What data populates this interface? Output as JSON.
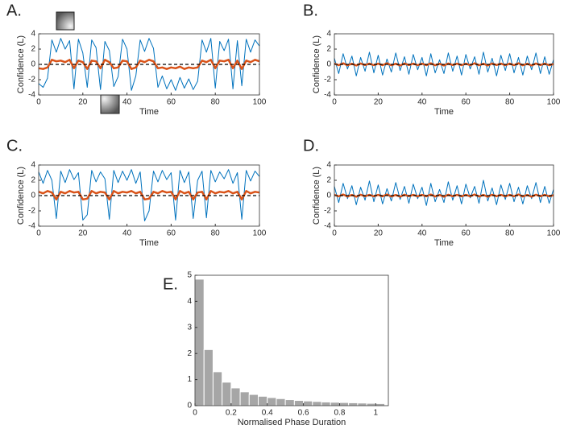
{
  "chart_data": [
    {
      "type": "line",
      "label": "A.",
      "xlabel": "Time",
      "ylabel": "Confidence (L)",
      "xlim": [
        0,
        100
      ],
      "ylim": [
        -4,
        4
      ],
      "xticks": [
        0,
        20,
        40,
        60,
        80,
        100
      ],
      "yticks": [
        -4,
        -2,
        0,
        2,
        4
      ],
      "hline": 0,
      "x": [
        0,
        2,
        4,
        6,
        8,
        10,
        12,
        14,
        16,
        18,
        20,
        22,
        24,
        26,
        28,
        30,
        32,
        34,
        36,
        38,
        40,
        42,
        44,
        46,
        48,
        50,
        52,
        54,
        56,
        58,
        60,
        62,
        64,
        66,
        68,
        70,
        72,
        74,
        76,
        78,
        80,
        82,
        84,
        86,
        88,
        90,
        92,
        94,
        96,
        98,
        100
      ],
      "series": [
        {
          "color": "#0072bd",
          "values": [
            -2.5,
            -3.0,
            -1.8,
            3.2,
            1.6,
            3.4,
            2.0,
            3.1,
            -3.2,
            3.3,
            1.5,
            -3.0,
            3.2,
            2.2,
            -3.3,
            3.0,
            1.8,
            -2.9,
            -1.6,
            3.3,
            2.0,
            -3.4,
            -1.5,
            3.2,
            1.7,
            3.4,
            2.1,
            -3.0,
            -1.5,
            -3.2,
            -2.0,
            -3.4,
            -1.7,
            -3.1,
            -1.9,
            -3.3,
            -2.2,
            3.2,
            1.6,
            3.4,
            -3.1,
            3.0,
            1.8,
            3.3,
            -3.2,
            3.1,
            -2.8,
            3.3,
            1.6,
            3.2,
            2.4
          ]
        },
        {
          "color": "#d95319",
          "values": [
            -0.5,
            -0.6,
            -0.4,
            0.6,
            0.4,
            0.5,
            0.3,
            0.6,
            -0.5,
            0.5,
            0.3,
            -0.6,
            0.5,
            0.4,
            -0.5,
            0.6,
            0.3,
            -0.5,
            -0.4,
            0.5,
            0.4,
            -0.6,
            -0.4,
            0.5,
            0.3,
            0.6,
            0.4,
            -0.5,
            -0.4,
            -0.6,
            -0.4,
            -0.5,
            -0.3,
            -0.6,
            -0.4,
            -0.5,
            -0.4,
            0.5,
            0.3,
            0.6,
            -0.5,
            0.5,
            0.4,
            0.6,
            -0.5,
            0.5,
            -0.6,
            0.5,
            0.3,
            0.6,
            0.4
          ]
        }
      ]
    },
    {
      "type": "line",
      "label": "B.",
      "xlabel": "Time",
      "ylabel": "Confidence (L)",
      "xlim": [
        0,
        100
      ],
      "ylim": [
        -4,
        4
      ],
      "xticks": [
        0,
        20,
        40,
        60,
        80,
        100
      ],
      "yticks": [
        -4,
        -2,
        0,
        2,
        4
      ],
      "hline": 0,
      "x": [
        0,
        2,
        4,
        6,
        8,
        10,
        12,
        14,
        16,
        18,
        20,
        22,
        24,
        26,
        28,
        30,
        32,
        34,
        36,
        38,
        40,
        42,
        44,
        46,
        48,
        50,
        52,
        54,
        56,
        58,
        60,
        62,
        64,
        66,
        68,
        70,
        72,
        74,
        76,
        78,
        80,
        82,
        84,
        86,
        88,
        90,
        92,
        94,
        96,
        98,
        100
      ],
      "series": [
        {
          "color": "#0072bd",
          "values": [
            0.8,
            -1.2,
            1.4,
            -0.6,
            1.1,
            -1.5,
            0.9,
            -0.9,
            1.6,
            -1.1,
            1.2,
            -1.4,
            0.7,
            -1.0,
            1.5,
            -0.8,
            1.0,
            -1.3,
            1.3,
            -0.7,
            0.9,
            -1.5,
            1.4,
            -1.1,
            0.6,
            -1.2,
            1.5,
            -0.9,
            1.1,
            -1.4,
            1.3,
            -0.6,
            1.0,
            -1.3,
            1.6,
            -1.0,
            0.8,
            -1.5,
            1.2,
            -0.8,
            1.4,
            -1.1,
            0.9,
            -1.4,
            1.1,
            -0.7,
            1.5,
            -1.2,
            1.0,
            -1.3,
            0.6
          ]
        },
        {
          "color": "#d95319",
          "values": [
            0.1,
            -0.1,
            0.15,
            -0.12,
            0.08,
            -0.15,
            0.12,
            -0.08,
            0.1,
            -0.1,
            0.1,
            -0.1,
            0.15,
            -0.12,
            0.08,
            -0.15,
            0.12,
            -0.08,
            0.1,
            -0.1,
            0.1,
            -0.1,
            0.15,
            -0.12,
            0.08,
            -0.15,
            0.12,
            -0.08,
            0.1,
            -0.1,
            0.1,
            -0.1,
            0.15,
            -0.12,
            0.08,
            -0.15,
            0.12,
            -0.08,
            0.1,
            -0.1,
            0.1,
            -0.1,
            0.15,
            -0.12,
            0.08,
            -0.15,
            0.12,
            -0.08,
            0.1,
            -0.1,
            0.05
          ]
        }
      ]
    },
    {
      "type": "line",
      "label": "C.",
      "xlabel": "Time",
      "ylabel": "Confidence (L)",
      "xlim": [
        0,
        100
      ],
      "ylim": [
        -4,
        4
      ],
      "xticks": [
        0,
        20,
        40,
        60,
        80,
        100
      ],
      "yticks": [
        -4,
        -2,
        0,
        2,
        4
      ],
      "hline": 0,
      "x": [
        0,
        2,
        4,
        6,
        8,
        10,
        12,
        14,
        16,
        18,
        20,
        22,
        24,
        26,
        28,
        30,
        32,
        34,
        36,
        38,
        40,
        42,
        44,
        46,
        48,
        50,
        52,
        54,
        56,
        58,
        60,
        62,
        64,
        66,
        68,
        70,
        72,
        74,
        76,
        78,
        80,
        82,
        84,
        86,
        88,
        90,
        92,
        94,
        96,
        98,
        100
      ],
      "series": [
        {
          "color": "#0072bd",
          "values": [
            3.1,
            1.6,
            3.3,
            2.0,
            -3.0,
            3.2,
            1.7,
            3.4,
            2.1,
            3.0,
            -3.2,
            -2.5,
            3.3,
            1.8,
            3.1,
            2.2,
            -3.1,
            3.3,
            1.7,
            3.2,
            2.0,
            3.4,
            1.6,
            3.1,
            -3.3,
            -2.0,
            3.2,
            1.8,
            3.3,
            2.1,
            3.0,
            -3.2,
            3.3,
            1.7,
            3.1,
            -3.0,
            2.0,
            3.2,
            -2.9,
            3.3,
            1.8,
            3.1,
            2.2,
            3.4,
            1.6,
            3.0,
            -3.1,
            3.3,
            1.9,
            3.2,
            2.5
          ]
        },
        {
          "color": "#d95319",
          "values": [
            0.5,
            0.3,
            0.6,
            0.4,
            -0.5,
            0.5,
            0.3,
            0.6,
            0.4,
            0.5,
            -0.5,
            -0.4,
            0.6,
            0.3,
            0.5,
            0.4,
            -0.5,
            0.6,
            0.3,
            0.5,
            0.4,
            0.6,
            0.3,
            0.5,
            -0.5,
            -0.4,
            0.5,
            0.3,
            0.6,
            0.4,
            0.5,
            -0.5,
            0.6,
            0.3,
            0.5,
            -0.5,
            0.4,
            0.5,
            -0.5,
            0.6,
            0.3,
            0.5,
            0.4,
            0.6,
            0.3,
            0.5,
            -0.5,
            0.6,
            0.3,
            0.5,
            0.4
          ]
        }
      ]
    },
    {
      "type": "line",
      "label": "D.",
      "xlabel": "Time",
      "ylabel": "Confidence (L)",
      "xlim": [
        0,
        100
      ],
      "ylim": [
        -4,
        4
      ],
      "xticks": [
        0,
        20,
        40,
        60,
        80,
        100
      ],
      "yticks": [
        -4,
        -2,
        0,
        2,
        4
      ],
      "hline": 0,
      "x": [
        0,
        2,
        4,
        6,
        8,
        10,
        12,
        14,
        16,
        18,
        20,
        22,
        24,
        26,
        28,
        30,
        32,
        34,
        36,
        38,
        40,
        42,
        44,
        46,
        48,
        50,
        52,
        54,
        56,
        58,
        60,
        62,
        64,
        66,
        68,
        70,
        72,
        74,
        76,
        78,
        80,
        82,
        84,
        86,
        88,
        90,
        92,
        94,
        96,
        98,
        100
      ],
      "series": [
        {
          "color": "#0072bd",
          "values": [
            1.2,
            -0.9,
            1.6,
            -0.4,
            1.3,
            -1.2,
            1.1,
            -0.6,
            1.9,
            -0.8,
            1.4,
            -1.1,
            0.9,
            -0.7,
            1.7,
            -0.5,
            1.2,
            -1.0,
            1.5,
            -0.4,
            1.1,
            -1.3,
            1.6,
            -0.8,
            0.8,
            -0.9,
            1.8,
            -0.6,
            1.3,
            -1.1,
            1.5,
            -0.3,
            1.2,
            -1.0,
            2.0,
            -0.7,
            1.0,
            -1.2,
            1.4,
            -0.5,
            1.6,
            -0.8,
            1.1,
            -1.1,
            1.3,
            -0.4,
            1.7,
            -0.9,
            1.2,
            -1.0,
            0.8
          ]
        },
        {
          "color": "#d95319",
          "values": [
            0.1,
            -0.1,
            0.15,
            -0.12,
            0.08,
            -0.15,
            0.12,
            -0.08,
            0.1,
            -0.1,
            0.1,
            -0.1,
            0.15,
            -0.12,
            0.08,
            -0.15,
            0.12,
            -0.08,
            0.1,
            -0.1,
            0.1,
            -0.1,
            0.15,
            -0.12,
            0.08,
            -0.15,
            0.12,
            -0.08,
            0.1,
            -0.1,
            0.1,
            -0.1,
            0.15,
            -0.12,
            0.08,
            -0.15,
            0.12,
            -0.08,
            0.1,
            -0.1,
            0.1,
            -0.1,
            0.15,
            -0.12,
            0.08,
            -0.15,
            0.12,
            -0.08,
            0.1,
            -0.1,
            0.05
          ]
        }
      ]
    },
    {
      "type": "histogram",
      "label": "E.",
      "xlabel": "Normalised Phase Duration",
      "color": "#a6a6a6",
      "xlim": [
        0,
        1.07
      ],
      "ylim": [
        0,
        5
      ],
      "xticks": [
        0,
        0.2,
        0.4,
        0.6,
        0.8,
        1
      ],
      "yticks": [
        0,
        1,
        2,
        3,
        4,
        5
      ],
      "bins": [
        0,
        0.05,
        0.1,
        0.15,
        0.2,
        0.25,
        0.3,
        0.35,
        0.4,
        0.45,
        0.5,
        0.55,
        0.6,
        0.65,
        0.7,
        0.75,
        0.8,
        0.85,
        0.9,
        0.95,
        1,
        1.05
      ],
      "counts": [
        4.85,
        2.15,
        1.3,
        0.9,
        0.68,
        0.53,
        0.43,
        0.36,
        0.31,
        0.27,
        0.23,
        0.2,
        0.18,
        0.16,
        0.14,
        0.13,
        0.12,
        0.11,
        0.1,
        0.09,
        0.08
      ]
    }
  ]
}
